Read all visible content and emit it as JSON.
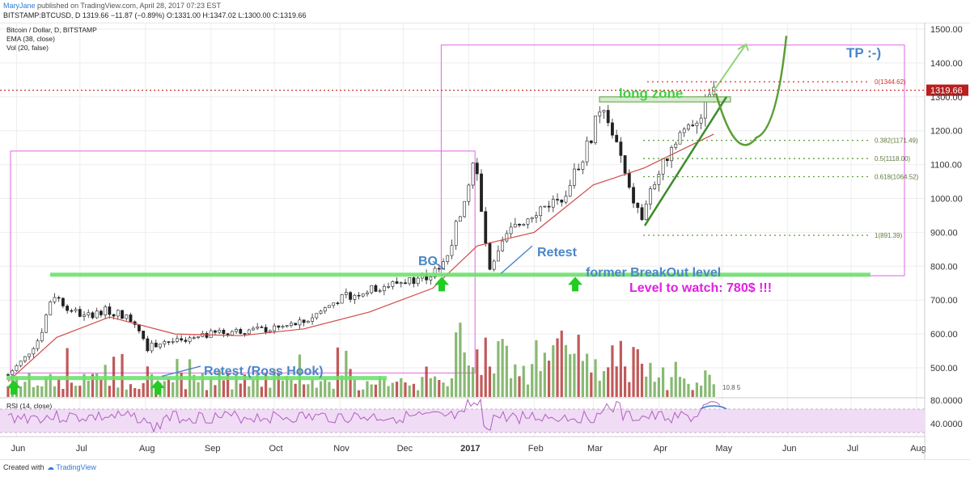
{
  "header": {
    "author": "MaryJane",
    "published": "published on TradingView.com, April 28, 2017 07:23 EST",
    "symbol_line": "BITSTAMP:BTCUSD, D",
    "last": "1319.66",
    "change": "−11.87 (−0.89%)",
    "open": "O:1331.00",
    "high": "H:1347.02",
    "low": "L:1300.00",
    "close": "C:1319.66"
  },
  "legend": {
    "title": "Bitcoin / Dollar, D, BITSTAMP",
    "ema": "EMA (38, close)",
    "vol": "Vol (20, false)"
  },
  "rsi_label": "RSI (14, close)",
  "footer": {
    "created": "Created with",
    "brand": "TradingView"
  },
  "colors": {
    "up": "#6aa84f",
    "down": "#b22f2f",
    "ema": "#d14a4a",
    "fib": "#5c9e3a",
    "green_line": "#6ee36e",
    "box": "#e066e0",
    "annot_blue": "#4a86c8",
    "magenta": "#e020e0",
    "rsi_fill": "#f0dcf5",
    "rsi_line": "#b05fc0"
  },
  "annotations": {
    "tp": "TP :-)",
    "long_zone": "long zone",
    "retest": "Retest",
    "bo": "BO",
    "former_breakout": "former BreakOut level",
    "level_to_watch": "Level to watch: 780$ !!!",
    "retest_ross": "Retest (Ross Hook)",
    "vol_value": "10.8 5"
  },
  "fib_levels": [
    {
      "label": "0(1344.62)",
      "price": 1344.62
    },
    {
      "label": "0.382(1171.49)",
      "price": 1171.49
    },
    {
      "label": "0.5(1118.00)",
      "price": 1118.0
    },
    {
      "label": "0.618(1064.52)",
      "price": 1064.52
    },
    {
      "label": "1(891.39)",
      "price": 891.39
    }
  ],
  "price_badge": "1319.66",
  "chart_data": {
    "type": "candlestick",
    "title": "Bitcoin / Dollar, D, BITSTAMP",
    "x_ticks": [
      "Jun",
      "Jul",
      "Aug",
      "Sep",
      "Oct",
      "Nov",
      "Dec",
      "2017",
      "Feb",
      "Mar",
      "Apr",
      "May",
      "Jun",
      "Jul",
      "Aug"
    ],
    "y_ticks": [
      "1500.00",
      "1400.00",
      "1300.00",
      "1200.00",
      "1100.00",
      "1000.00",
      "900.00",
      "800.00",
      "700.00",
      "600.00",
      "500.00"
    ],
    "ylim": [
      450,
      1510
    ],
    "rsi_ticks": [
      "80.0000",
      "40.0000"
    ],
    "series": [
      {
        "name": "price",
        "x": [
          "2016-05-28",
          "2016-06-05",
          "2016-06-12",
          "2016-06-18",
          "2016-06-25",
          "2016-07-03",
          "2016-07-12",
          "2016-07-20",
          "2016-07-28",
          "2016-08-02",
          "2016-08-10",
          "2016-08-20",
          "2016-09-01",
          "2016-09-15",
          "2016-10-01",
          "2016-10-15",
          "2016-11-01",
          "2016-11-15",
          "2016-12-01",
          "2016-12-15",
          "2016-12-22",
          "2016-12-28",
          "2017-01-04",
          "2017-01-06",
          "2017-01-11",
          "2017-01-20",
          "2017-02-01",
          "2017-02-15",
          "2017-02-28",
          "2017-03-03",
          "2017-03-10",
          "2017-03-18",
          "2017-03-24",
          "2017-03-30",
          "2017-04-10",
          "2017-04-20",
          "2017-04-27"
        ],
        "y": [
          480,
          530,
          590,
          720,
          680,
          650,
          670,
          660,
          630,
          560,
          580,
          575,
          600,
          610,
          615,
          635,
          705,
          730,
          755,
          775,
          835,
          960,
          1130,
          1000,
          780,
          900,
          960,
          1010,
          1180,
          1270,
          1200,
          1020,
          940,
          1050,
          1190,
          1240,
          1320
        ]
      },
      {
        "name": "EMA (38, close)",
        "x": [
          "2016-05-28",
          "2016-06-20",
          "2016-07-15",
          "2016-08-15",
          "2016-09-15",
          "2016-10-15",
          "2016-11-15",
          "2016-12-15",
          "2017-01-05",
          "2017-02-01",
          "2017-03-01",
          "2017-03-25",
          "2017-04-27"
        ],
        "y": [
          460,
          590,
          650,
          600,
          595,
          615,
          665,
          735,
          860,
          900,
          1040,
          1090,
          1190
        ]
      }
    ]
  }
}
